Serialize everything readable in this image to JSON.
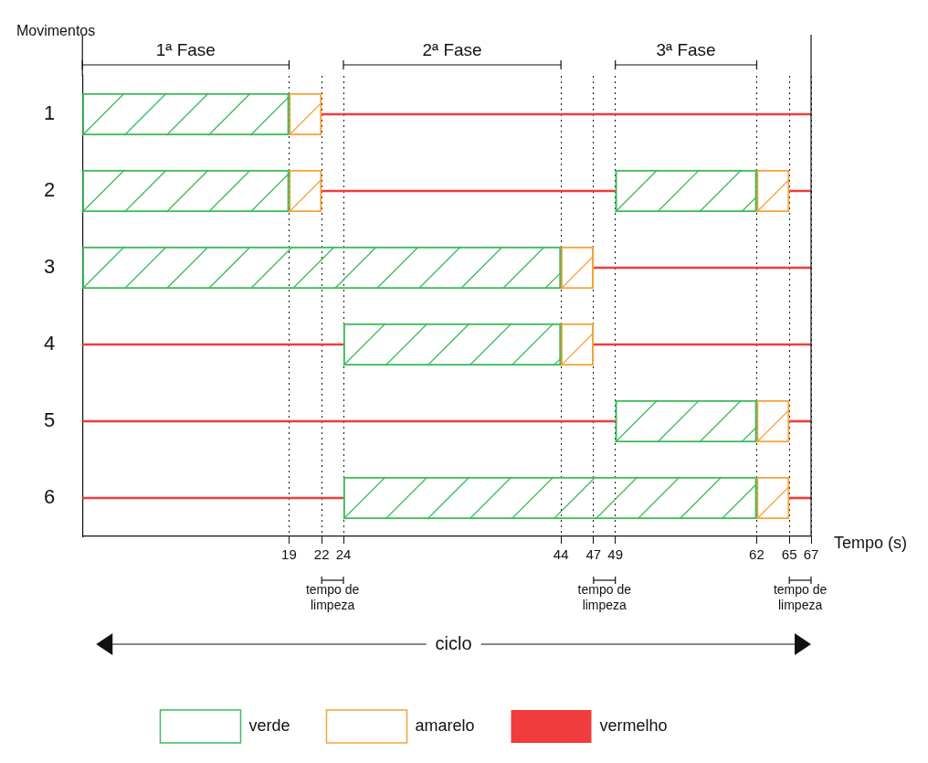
{
  "chart_data": {
    "type": "bar",
    "orientation": "horizontal",
    "ylabel": "Movimentos",
    "xlabel": "Tempo (s)",
    "categories": [
      "1",
      "2",
      "3",
      "4",
      "5",
      "6"
    ],
    "series": [
      {
        "name": "verde",
        "color": "#3dbb5c",
        "base": [
          0,
          0,
          0,
          24,
          49,
          24
        ],
        "values": [
          19,
          19,
          44,
          20,
          13,
          38
        ]
      },
      {
        "color": "#3dbb5c",
        "base": [
          null,
          49,
          null,
          null,
          null,
          null
        ],
        "values": [
          null,
          13,
          null,
          null,
          null,
          null
        ]
      },
      {
        "name": "amarelo",
        "color": "#f7a23e",
        "base": [
          19,
          19,
          44,
          44,
          62,
          62
        ],
        "values": [
          3,
          3,
          3,
          3,
          3,
          3
        ]
      },
      {
        "color": "#f7a23e",
        "base": [
          null,
          62,
          null,
          null,
          null,
          null
        ],
        "values": [
          null,
          3,
          null,
          null,
          null,
          null
        ]
      },
      {
        "name": "vermelho",
        "color": "#f03c3c",
        "line_style": "solid",
        "base": [
          22,
          22,
          47,
          0,
          0,
          0
        ],
        "values": [
          45,
          27,
          20,
          24,
          49,
          24
        ]
      },
      {
        "color": "#f03c3c",
        "line_style": "solid",
        "base": [
          null,
          65,
          null,
          47,
          65,
          65
        ],
        "values": [
          null,
          2,
          null,
          20,
          2,
          2
        ]
      }
    ],
    "xlim": [
      0,
      67
    ],
    "xticks": [
      19,
      22,
      24,
      44,
      47,
      49,
      62,
      65,
      67
    ],
    "grid": "x",
    "legend": "bottom",
    "annotations": [
      "1ª Fase",
      "tempo de limpeza",
      "2ª Fase",
      "tempo de limpeza",
      "3ª Fase",
      "tempo de limpeza",
      "ciclo"
    ]
  }
}
